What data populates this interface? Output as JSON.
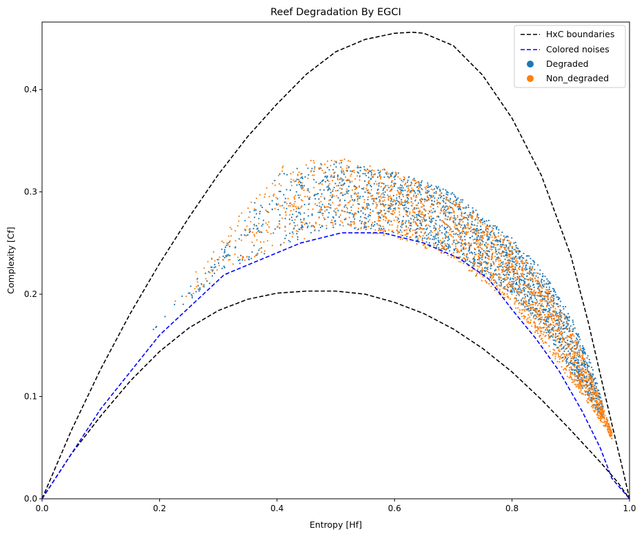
{
  "chart_data": {
    "type": "scatter",
    "title": "Reef Degradation By EGCI",
    "xlabel": "Entropy [Hf]",
    "ylabel": "Complexity [Cf]",
    "xlim": [
      0.0,
      1.0
    ],
    "ylim": [
      0.0,
      0.466
    ],
    "xticks": [
      "0.0",
      "0.2",
      "0.4",
      "0.6",
      "0.8",
      "1.0"
    ],
    "yticks": [
      "0.0",
      "0.1",
      "0.2",
      "0.3",
      "0.4"
    ],
    "grid": false,
    "legend_position": "top-right",
    "series": [
      {
        "name": "HxC boundaries",
        "kind": "dashed-line",
        "color": "#000000",
        "x": [
          0.0,
          0.05,
          0.1,
          0.15,
          0.2,
          0.25,
          0.3,
          0.35,
          0.4,
          0.45,
          0.5,
          0.55,
          0.6,
          0.63,
          0.65,
          0.7,
          0.75,
          0.8,
          0.85,
          0.9,
          0.93,
          0.95,
          0.97,
          0.99,
          1.0
        ],
        "y": [
          0.0,
          0.067,
          0.127,
          0.181,
          0.23,
          0.275,
          0.317,
          0.354,
          0.386,
          0.415,
          0.437,
          0.449,
          0.455,
          0.456,
          0.455,
          0.443,
          0.414,
          0.372,
          0.316,
          0.238,
          0.172,
          0.122,
          0.073,
          0.025,
          0.0
        ],
        "x2": [
          0.0,
          0.05,
          0.1,
          0.15,
          0.2,
          0.25,
          0.3,
          0.35,
          0.4,
          0.45,
          0.48,
          0.5,
          0.55,
          0.6,
          0.65,
          0.7,
          0.75,
          0.8,
          0.85,
          0.9,
          0.95,
          0.98,
          1.0
        ],
        "y2": [
          0.0,
          0.044,
          0.081,
          0.115,
          0.144,
          0.167,
          0.184,
          0.195,
          0.201,
          0.203,
          0.203,
          0.203,
          0.2,
          0.192,
          0.181,
          0.166,
          0.147,
          0.124,
          0.097,
          0.067,
          0.036,
          0.016,
          0.0
        ]
      },
      {
        "name": "Colored noises",
        "kind": "dashed-line",
        "color": "#0000ff",
        "x": [
          0.0,
          0.1,
          0.2,
          0.31,
          0.44,
          0.51,
          0.58,
          0.65,
          0.71,
          0.76,
          0.8,
          0.84,
          0.88,
          0.92,
          0.95,
          0.97,
          1.0
        ],
        "y": [
          0.0,
          0.088,
          0.16,
          0.219,
          0.25,
          0.26,
          0.26,
          0.25,
          0.235,
          0.215,
          0.185,
          0.157,
          0.125,
          0.085,
          0.05,
          0.02,
          0.0
        ]
      },
      {
        "name": "Degraded",
        "kind": "scatter",
        "color": "#1f77b4",
        "x_range": [
          0.18,
          0.955
        ],
        "y_upper": [
          [
            0.18,
            0.16
          ],
          [
            0.3,
            0.24
          ],
          [
            0.4,
            0.32
          ],
          [
            0.5,
            0.33
          ],
          [
            0.6,
            0.32
          ],
          [
            0.7,
            0.3
          ],
          [
            0.8,
            0.255
          ],
          [
            0.85,
            0.225
          ],
          [
            0.9,
            0.18
          ],
          [
            0.94,
            0.125
          ],
          [
            0.955,
            0.09
          ]
        ],
        "y_lower": [
          [
            0.18,
            0.16
          ],
          [
            0.3,
            0.215
          ],
          [
            0.4,
            0.245
          ],
          [
            0.5,
            0.265
          ],
          [
            0.6,
            0.26
          ],
          [
            0.7,
            0.24
          ],
          [
            0.8,
            0.2
          ],
          [
            0.85,
            0.17
          ],
          [
            0.9,
            0.125
          ],
          [
            0.94,
            0.09
          ],
          [
            0.955,
            0.08
          ]
        ]
      },
      {
        "name": "Non_degraded",
        "kind": "scatter",
        "color": "#ff7f0e",
        "x_range": [
          0.2,
          0.97
        ],
        "y_upper": [
          [
            0.2,
            0.18
          ],
          [
            0.3,
            0.25
          ],
          [
            0.4,
            0.325
          ],
          [
            0.5,
            0.335
          ],
          [
            0.6,
            0.32
          ],
          [
            0.7,
            0.295
          ],
          [
            0.8,
            0.25
          ],
          [
            0.85,
            0.215
          ],
          [
            0.9,
            0.17
          ],
          [
            0.94,
            0.115
          ],
          [
            0.97,
            0.065
          ]
        ],
        "y_lower": [
          [
            0.2,
            0.17
          ],
          [
            0.3,
            0.22
          ],
          [
            0.4,
            0.245
          ],
          [
            0.5,
            0.265
          ],
          [
            0.6,
            0.255
          ],
          [
            0.7,
            0.235
          ],
          [
            0.8,
            0.19
          ],
          [
            0.85,
            0.155
          ],
          [
            0.9,
            0.115
          ],
          [
            0.94,
            0.085
          ],
          [
            0.97,
            0.058
          ]
        ]
      }
    ]
  }
}
